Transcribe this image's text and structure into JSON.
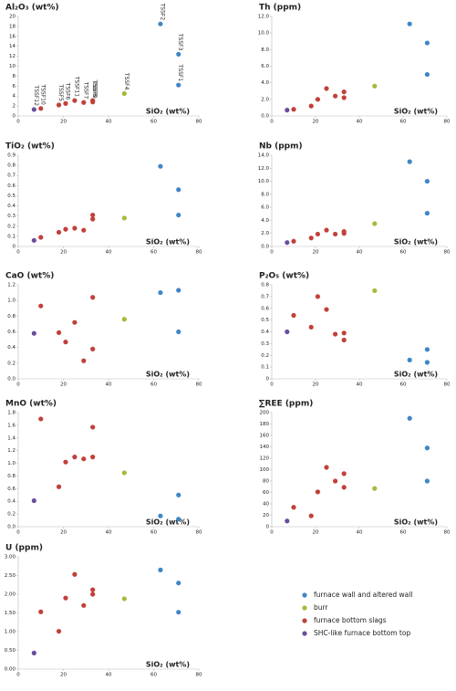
{
  "legend": [
    {
      "name": "furnace wall and altered wall",
      "color": "#3f86c6"
    },
    {
      "name": "burr",
      "color": "#a9b83c"
    },
    {
      "name": "furnace bottom slags",
      "color": "#c2403a"
    },
    {
      "name": "SHC-like furnace bottom top",
      "color": "#6a4e9c"
    }
  ],
  "chart_data": [
    {
      "type": "scatter",
      "title": "Al₂O₃ (wt%)",
      "x_label": "SiO₂ (wt%)",
      "xlim": [
        0,
        80
      ],
      "xticks": [
        0,
        20,
        40,
        60,
        80
      ],
      "ylim": [
        0,
        20
      ],
      "yticks": [
        0,
        2,
        4,
        6,
        8,
        10,
        12,
        14,
        16,
        18,
        20
      ],
      "series": [
        {
          "x": [
            63,
            71,
            71
          ],
          "values": [
            18.5,
            12.4,
            6.2
          ],
          "point_labels": [
            "TSSF2",
            "TSSF3",
            "TSSF1"
          ]
        },
        {
          "x": [
            47
          ],
          "values": [
            4.5
          ],
          "point_labels": [
            "TSSF4"
          ]
        },
        {
          "x": [
            10,
            18,
            21,
            25,
            29,
            33,
            33
          ],
          "values": [
            1.5,
            2.2,
            2.5,
            3.1,
            2.7,
            3.1,
            2.8
          ],
          "point_labels": [
            "TSSF10",
            "TSSF5",
            "TSSF6",
            "TSSF11",
            "TSSF7",
            "TSSF8",
            "TSSF9"
          ]
        },
        {
          "x": [
            7
          ],
          "values": [
            1.3
          ],
          "point_labels": [
            "TSSF12"
          ]
        }
      ]
    },
    {
      "type": "scatter",
      "title": "Th (ppm)",
      "x_label": "SiO₂ (wt%)",
      "xlim": [
        0,
        80
      ],
      "xticks": [
        0,
        20,
        40,
        60,
        80
      ],
      "ylim": [
        0,
        12
      ],
      "yticks": [
        {
          "value": 0,
          "label": "0.0"
        },
        {
          "value": 2,
          "label": "2.0"
        },
        {
          "value": 4,
          "label": "4.0"
        },
        {
          "value": 6,
          "label": "6.0"
        },
        {
          "value": 8,
          "label": "8.0"
        },
        {
          "value": 10,
          "label": "10.0"
        },
        {
          "value": 12,
          "label": "12.0"
        }
      ],
      "series": [
        {
          "x": [
            63,
            71,
            71
          ],
          "values": [
            11.1,
            8.8,
            5.0
          ]
        },
        {
          "x": [
            47
          ],
          "values": [
            3.6
          ]
        },
        {
          "x": [
            10,
            18,
            21,
            25,
            29,
            33,
            33
          ],
          "values": [
            0.8,
            1.2,
            2.0,
            3.3,
            2.4,
            2.9,
            2.2
          ]
        },
        {
          "x": [
            7
          ],
          "values": [
            0.7
          ]
        }
      ]
    },
    {
      "type": "scatter",
      "title": "TiO₂ (wt%)",
      "x_label": "SiO₂ (wt%)",
      "xlim": [
        0,
        80
      ],
      "xticks": [
        0,
        20,
        40,
        60,
        80
      ],
      "ylim": [
        0,
        0.9
      ],
      "yticks": [
        0,
        0.1,
        0.2,
        0.3,
        0.4,
        0.5,
        0.6,
        0.7,
        0.8,
        0.9
      ],
      "series": [
        {
          "x": [
            63,
            71,
            71
          ],
          "values": [
            0.79,
            0.56,
            0.31
          ]
        },
        {
          "x": [
            47
          ],
          "values": [
            0.28
          ]
        },
        {
          "x": [
            10,
            18,
            21,
            25,
            29,
            33,
            33
          ],
          "values": [
            0.09,
            0.14,
            0.17,
            0.18,
            0.16,
            0.31,
            0.27
          ]
        },
        {
          "x": [
            7
          ],
          "values": [
            0.06
          ]
        }
      ]
    },
    {
      "type": "scatter",
      "title": "Nb (ppm)",
      "x_label": "SiO₂ (wt%)",
      "xlim": [
        0,
        80
      ],
      "xticks": [
        0,
        20,
        40,
        60,
        80
      ],
      "ylim": [
        0,
        14
      ],
      "yticks": [
        {
          "value": 0,
          "label": "0.0"
        },
        {
          "value": 2,
          "label": "2.0"
        },
        {
          "value": 4,
          "label": "4.0"
        },
        {
          "value": 6,
          "label": "6.0"
        },
        {
          "value": 8,
          "label": "8.0"
        },
        {
          "value": 10,
          "label": "10.0"
        },
        {
          "value": 12,
          "label": "12.0"
        },
        {
          "value": 14,
          "label": "14.0"
        }
      ],
      "series": [
        {
          "x": [
            63,
            71,
            71
          ],
          "values": [
            13.0,
            10.0,
            5.1
          ]
        },
        {
          "x": [
            47
          ],
          "values": [
            3.5
          ]
        },
        {
          "x": [
            10,
            18,
            21,
            25,
            29,
            33,
            33
          ],
          "values": [
            0.8,
            1.3,
            1.9,
            2.5,
            1.9,
            2.3,
            2.0
          ]
        },
        {
          "x": [
            7
          ],
          "values": [
            0.6
          ]
        }
      ]
    },
    {
      "type": "scatter",
      "title": "CaO (wt%)",
      "x_label": "SiO₂ (wt%)",
      "xlim": [
        0,
        80
      ],
      "xticks": [
        0,
        20,
        40,
        60,
        80
      ],
      "ylim": [
        0,
        1.2
      ],
      "yticks": [
        {
          "value": 0,
          "label": "0.0"
        },
        {
          "value": 0.2,
          "label": "0.2"
        },
        {
          "value": 0.4,
          "label": "0.4"
        },
        {
          "value": 0.6,
          "label": "0.6"
        },
        {
          "value": 0.8,
          "label": "0.8"
        },
        {
          "value": 1,
          "label": "1.0"
        },
        {
          "value": 1.2,
          "label": "1.2"
        }
      ],
      "series": [
        {
          "x": [
            63,
            71,
            71
          ],
          "values": [
            1.1,
            1.13,
            0.6
          ]
        },
        {
          "x": [
            47
          ],
          "values": [
            0.76
          ]
        },
        {
          "x": [
            10,
            18,
            21,
            25,
            29,
            33,
            33
          ],
          "values": [
            0.93,
            0.59,
            0.47,
            0.72,
            0.23,
            1.04,
            0.38
          ]
        },
        {
          "x": [
            7
          ],
          "values": [
            0.58
          ]
        }
      ]
    },
    {
      "type": "scatter",
      "title": "P₂O₅ (wt%)",
      "x_label": "SiO₂ (wt%)",
      "xlim": [
        0,
        80
      ],
      "xticks": [
        0,
        20,
        40,
        60,
        80
      ],
      "ylim": [
        0,
        0.8
      ],
      "yticks": [
        0,
        0.1,
        0.2,
        0.3,
        0.4,
        0.5,
        0.6,
        0.7,
        0.8
      ],
      "series": [
        {
          "x": [
            63,
            71,
            71
          ],
          "values": [
            0.16,
            0.25,
            0.14
          ]
        },
        {
          "x": [
            47
          ],
          "values": [
            0.75
          ]
        },
        {
          "x": [
            10,
            18,
            21,
            25,
            29,
            33,
            33
          ],
          "values": [
            0.54,
            0.44,
            0.7,
            0.59,
            0.38,
            0.39,
            0.33
          ]
        },
        {
          "x": [
            7
          ],
          "values": [
            0.4
          ]
        }
      ]
    },
    {
      "type": "scatter",
      "title": "MnO (wt%)",
      "x_label": "SiO₂ (wt%)",
      "xlim": [
        0,
        80
      ],
      "xticks": [
        0,
        20,
        40,
        60,
        80
      ],
      "ylim": [
        0,
        1.8
      ],
      "yticks": [
        {
          "value": 0,
          "label": "0.0"
        },
        {
          "value": 0.2,
          "label": "0.2"
        },
        {
          "value": 0.4,
          "label": "0.4"
        },
        {
          "value": 0.6,
          "label": "0.6"
        },
        {
          "value": 0.8,
          "label": "0.8"
        },
        {
          "value": 1,
          "label": "1.0"
        },
        {
          "value": 1.2,
          "label": "1.2"
        },
        {
          "value": 1.4,
          "label": "1.4"
        },
        {
          "value": 1.6,
          "label": "1.6"
        },
        {
          "value": 1.8,
          "label": "1.8"
        }
      ],
      "series": [
        {
          "x": [
            63,
            71,
            71
          ],
          "values": [
            0.17,
            0.5,
            0.12
          ]
        },
        {
          "x": [
            47
          ],
          "values": [
            0.85
          ]
        },
        {
          "x": [
            10,
            18,
            21,
            25,
            29,
            33,
            33
          ],
          "values": [
            1.7,
            0.63,
            1.02,
            1.1,
            1.07,
            1.57,
            1.1
          ]
        },
        {
          "x": [
            7
          ],
          "values": [
            0.41
          ]
        }
      ]
    },
    {
      "type": "scatter",
      "title": "∑REE (ppm)",
      "x_label": "SiO₂ (wt%)",
      "xlim": [
        0,
        80
      ],
      "xticks": [
        0,
        20,
        40,
        60,
        80
      ],
      "ylim": [
        0,
        200
      ],
      "yticks": [
        0,
        20,
        40,
        60,
        80,
        100,
        120,
        140,
        160,
        180,
        200
      ],
      "series": [
        {
          "x": [
            63,
            71,
            71
          ],
          "values": [
            190,
            138,
            80
          ]
        },
        {
          "x": [
            47
          ],
          "values": [
            67
          ]
        },
        {
          "x": [
            10,
            18,
            21,
            25,
            29,
            33,
            33
          ],
          "values": [
            34,
            19,
            61,
            104,
            80,
            93,
            69
          ]
        },
        {
          "x": [
            7
          ],
          "values": [
            10
          ]
        }
      ]
    },
    {
      "type": "scatter",
      "title": "U (ppm)",
      "x_label": "SiO₂ (wt%)",
      "xlim": [
        0,
        80
      ],
      "xticks": [
        0,
        20,
        40,
        60,
        80
      ],
      "ylim": [
        0,
        3
      ],
      "yticks": [
        {
          "value": 0,
          "label": "0.00"
        },
        {
          "value": 0.5,
          "label": "0.50"
        },
        {
          "value": 1,
          "label": "1.00"
        },
        {
          "value": 1.5,
          "label": "1.50"
        },
        {
          "value": 2,
          "label": "2.00"
        },
        {
          "value": 2.5,
          "label": "2.50"
        },
        {
          "value": 3,
          "label": "3.00"
        }
      ],
      "series": [
        {
          "x": [
            63,
            71,
            71
          ],
          "values": [
            2.65,
            2.3,
            1.52
          ]
        },
        {
          "x": [
            47
          ],
          "values": [
            1.88
          ]
        },
        {
          "x": [
            10,
            18,
            21,
            25,
            29,
            33,
            33
          ],
          "values": [
            1.53,
            1.01,
            1.9,
            2.53,
            1.7,
            2.12,
            2.0
          ]
        },
        {
          "x": [
            7
          ],
          "values": [
            0.43
          ]
        }
      ]
    }
  ]
}
